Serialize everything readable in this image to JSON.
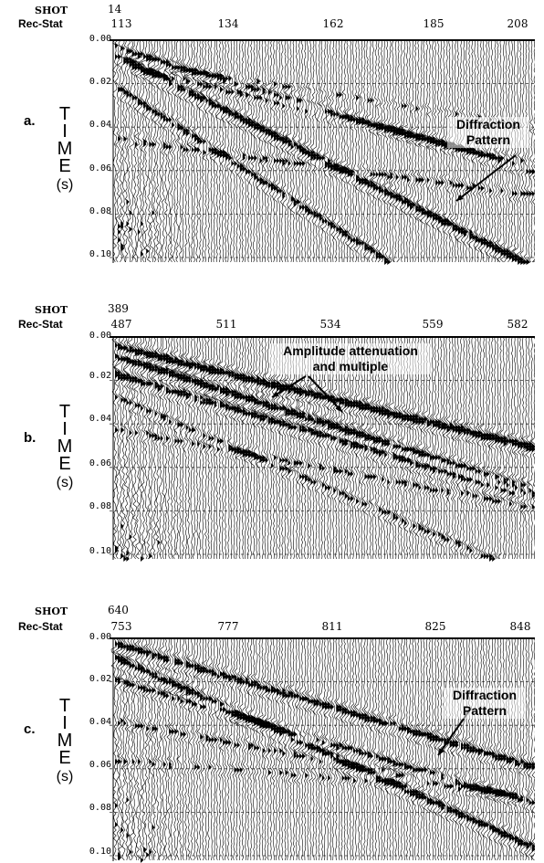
{
  "axis": {
    "time_title_letters": [
      "T",
      "I",
      "M",
      "E"
    ],
    "time_unit": "(s)",
    "time_ticks": [
      "0.00",
      "0.02",
      "0.04",
      "0.06",
      "0.08",
      "0.10"
    ]
  },
  "panels": [
    {
      "letter": "a.",
      "shot_label": "SHOT",
      "shot_number": "14",
      "rec_stat_label": "Rec-Stat",
      "rec_stat_numbers": [
        "113",
        "134",
        "162",
        "185",
        "208"
      ],
      "annotation": "Diffraction Pattern",
      "annotation_lines": [
        "Diffraction",
        "Pattern"
      ]
    },
    {
      "letter": "b.",
      "shot_label": "SHOT",
      "shot_number": "389",
      "rec_stat_label": "Rec-Stat",
      "rec_stat_numbers": [
        "487",
        "511",
        "534",
        "559",
        "582"
      ],
      "annotation": "Amplitude attenuation and multiple",
      "annotation_lines": [
        "Amplitude attenuation",
        "and multiple"
      ]
    },
    {
      "letter": "c.",
      "shot_label": "SHOT",
      "shot_number": "640",
      "rec_stat_label": "Rec-Stat",
      "rec_stat_numbers": [
        "753",
        "777",
        "811",
        "825",
        "848"
      ],
      "annotation": "Diffraction Pattern",
      "annotation_lines": [
        "Diffraction",
        "Pattern"
      ]
    }
  ]
}
